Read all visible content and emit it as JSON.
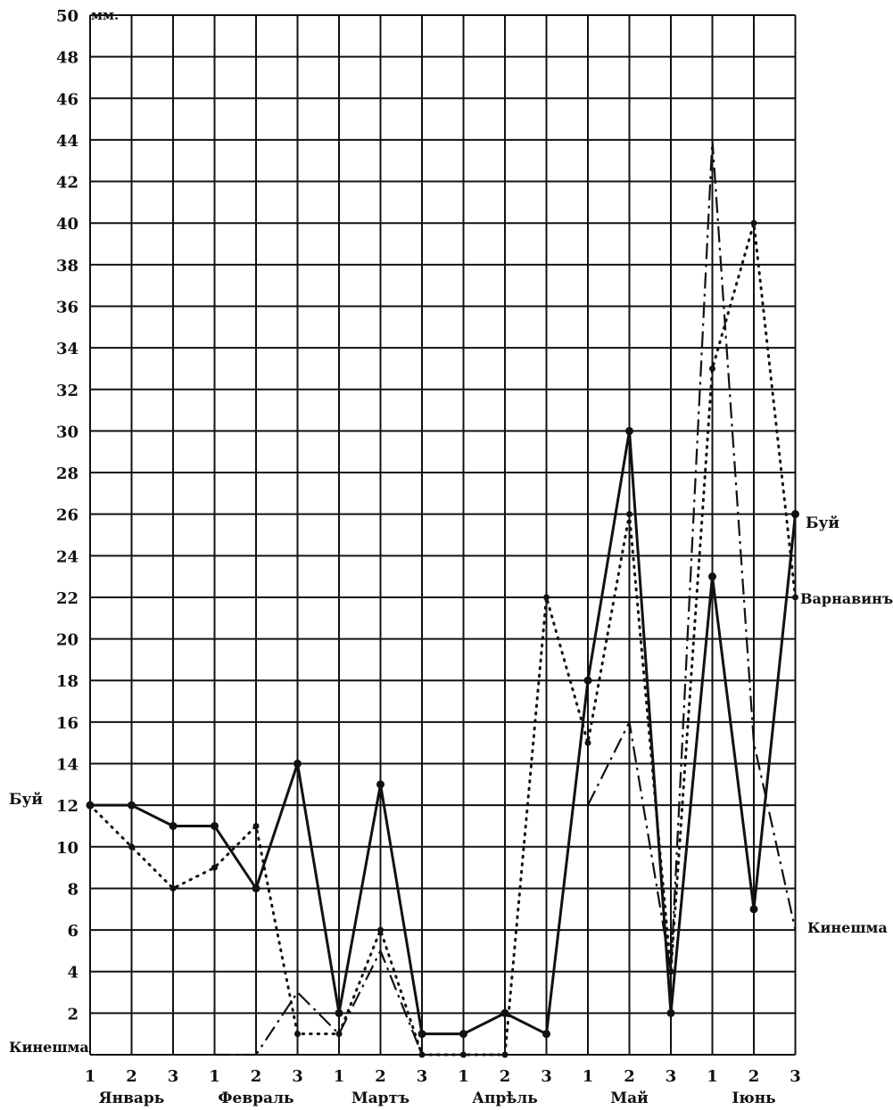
{
  "chart_data": {
    "type": "line",
    "title": "",
    "unit": "мм.",
    "ylim": [
      0,
      50
    ],
    "y_ticks": [
      2,
      4,
      6,
      8,
      10,
      12,
      14,
      16,
      18,
      20,
      22,
      24,
      26,
      28,
      30,
      32,
      34,
      36,
      38,
      40,
      42,
      44,
      46,
      48,
      50
    ],
    "decades": [
      "1",
      "2",
      "3",
      "1",
      "2",
      "3",
      "1",
      "2",
      "3",
      "1",
      "2",
      "3",
      "1",
      "2",
      "3",
      "1",
      "2",
      "3"
    ],
    "months": [
      "Январь",
      "Февраль",
      "Мартъ",
      "Апрѣль",
      "Май",
      "Іюнь"
    ],
    "grid": true,
    "series": [
      {
        "name": "Буй",
        "style": "solid",
        "values": [
          12,
          12,
          11,
          11,
          8,
          14,
          2,
          13,
          1,
          1,
          2,
          1,
          18,
          30,
          2,
          23,
          7,
          26
        ]
      },
      {
        "name": "Варнавинъ",
        "style": "dotted",
        "values": [
          12,
          10,
          8,
          9,
          11,
          1,
          1,
          6,
          0,
          0,
          0,
          22,
          15,
          26,
          4,
          33,
          40,
          22
        ]
      },
      {
        "name": "Кинешма",
        "style": "dash-dot",
        "values": [
          null,
          null,
          null,
          0,
          0,
          3,
          1,
          5,
          0,
          0,
          0,
          null,
          12,
          16,
          4,
          44,
          15,
          6
        ]
      }
    ],
    "labels": {
      "left_buy": "Буй",
      "left_kineshma": "Кинешма",
      "right_buy": "Буй",
      "right_varnavin": "Варнавинъ",
      "right_kineshma": "Кинешма"
    }
  }
}
